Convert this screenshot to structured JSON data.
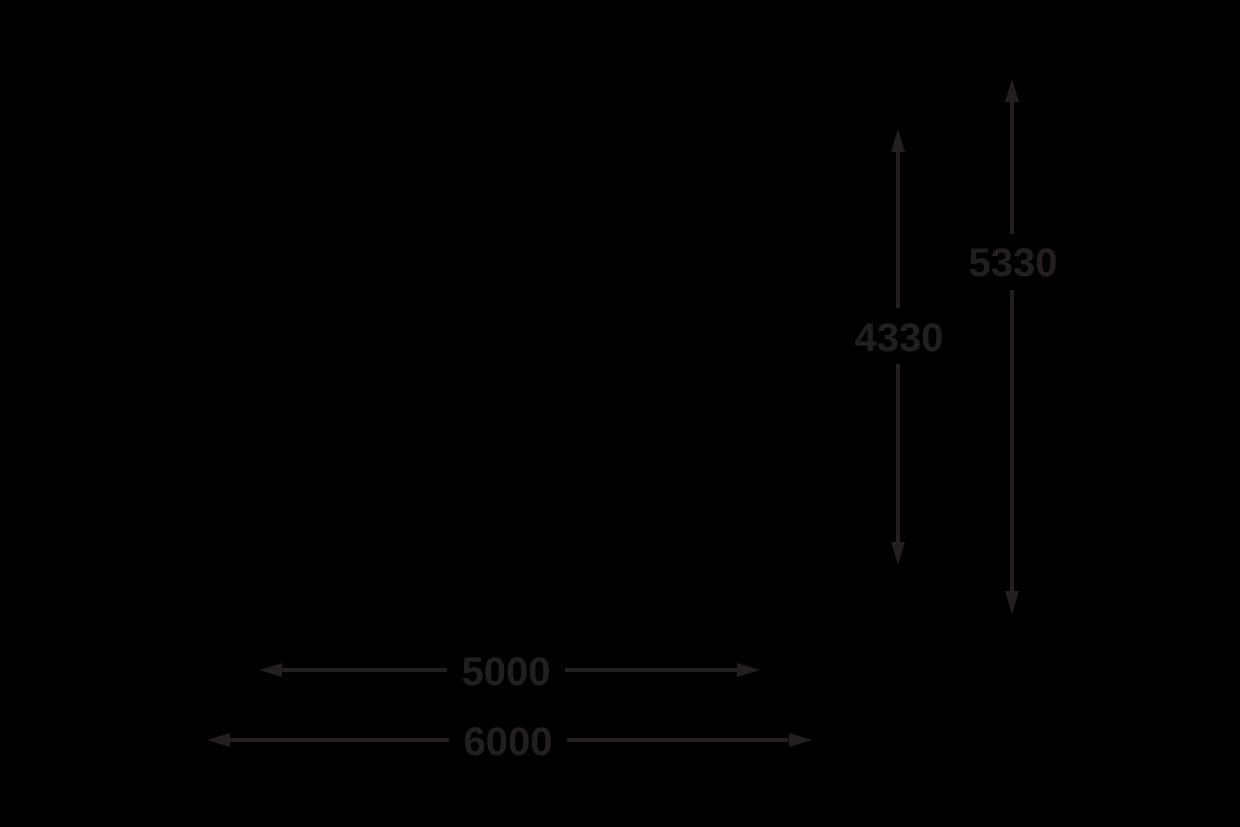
{
  "diagram": {
    "background_color": "#000000",
    "ink_color": "#231F20",
    "dims": {
      "v_inner": {
        "label": "4330",
        "value": 4330,
        "orientation": "vertical"
      },
      "v_outer": {
        "label": "5330",
        "value": 5330,
        "orientation": "vertical"
      },
      "h_inner": {
        "label": "5000",
        "value": 5000,
        "orientation": "horizontal"
      },
      "h_outer": {
        "label": "6000",
        "value": 6000,
        "orientation": "horizontal"
      }
    }
  }
}
